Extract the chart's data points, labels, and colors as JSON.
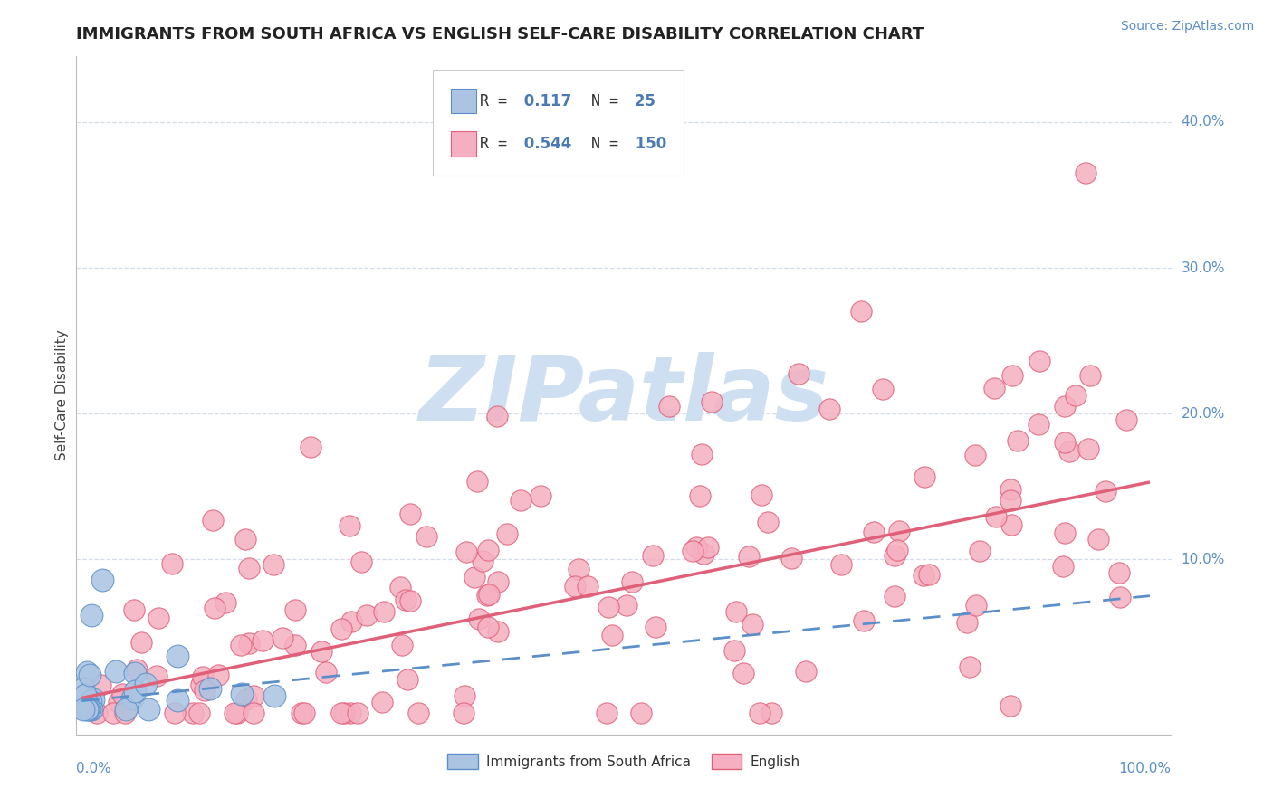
{
  "title": "IMMIGRANTS FROM SOUTH AFRICA VS ENGLISH SELF-CARE DISABILITY CORRELATION CHART",
  "source": "Source: ZipAtlas.com",
  "ylabel": "Self-Care Disability",
  "R_blue": 0.117,
  "N_blue": 25,
  "R_pink": 0.544,
  "N_pink": 150,
  "blue_color": "#aac4e2",
  "blue_edge_color": "#5b8fc9",
  "blue_line_color": "#5b8fc9",
  "pink_color": "#f5afc0",
  "pink_edge_color": "#e0607a",
  "pink_line_color": "#e0607a",
  "background_color": "#ffffff",
  "watermark_text": "ZIPatlas",
  "watermark_color": "#cddff0",
  "legend_label_blue": "Immigrants from South Africa",
  "legend_label_pink": "English",
  "grid_color": "#d0d8e8",
  "ytick_color": "#5b8fc9",
  "xtick_color": "#5b8fc9",
  "title_color": "#222222",
  "ylabel_color": "#444444",
  "source_color": "#5b8fc9",
  "pink_slope": 0.148,
  "pink_intercept": 0.005,
  "blue_slope": 0.072,
  "blue_intercept": 0.003
}
